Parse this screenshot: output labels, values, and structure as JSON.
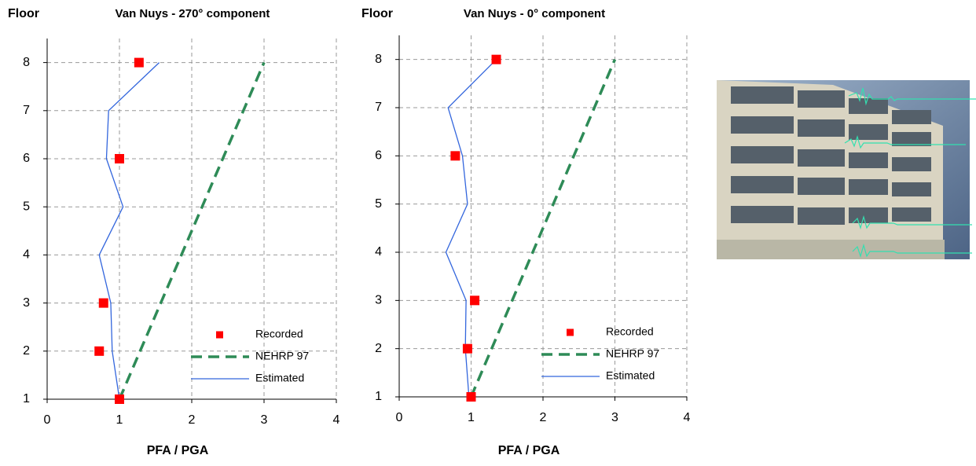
{
  "chart_data": [
    {
      "type": "line",
      "title": "Van Nuys - 270° component",
      "y_label": "Floor",
      "x_label": "PFA / PGA",
      "xlim": [
        0,
        4
      ],
      "xticks": [
        0,
        1,
        2,
        3,
        4
      ],
      "ylim": [
        1,
        8.5
      ],
      "yticks": [
        1,
        2,
        3,
        4,
        5,
        6,
        7,
        8
      ],
      "grid": true,
      "legend": "lower right",
      "series": [
        {
          "name": "Recorded",
          "type": "scatter",
          "color": "#ff0000",
          "x": [
            1.0,
            0.72,
            0.78,
            1.0,
            1.27
          ],
          "values": [
            1,
            2,
            3,
            6,
            8
          ]
        },
        {
          "name": "NEHRP 97",
          "type": "dashed",
          "color": "#2e8b57",
          "x": [
            1,
            3
          ],
          "values": [
            1,
            8
          ]
        },
        {
          "name": "Estimated",
          "type": "line",
          "color": "#3366dd",
          "x": [
            1.0,
            0.9,
            0.88,
            0.72,
            1.05,
            0.82,
            0.85,
            1.55
          ],
          "values": [
            1,
            2,
            3,
            4,
            5,
            6,
            7,
            8
          ]
        }
      ]
    },
    {
      "type": "line",
      "title": "Van Nuys - 0° component",
      "y_label": "Floor",
      "x_label": "PFA / PGA",
      "xlim": [
        0,
        4
      ],
      "xticks": [
        0,
        1,
        2,
        3,
        4
      ],
      "ylim": [
        1,
        8.5
      ],
      "yticks": [
        1,
        2,
        3,
        4,
        5,
        6,
        7,
        8
      ],
      "grid": true,
      "legend": "lower right",
      "series": [
        {
          "name": "Recorded",
          "type": "scatter",
          "color": "#ff0000",
          "x": [
            1.0,
            0.95,
            1.05,
            0.78,
            1.35
          ],
          "values": [
            1,
            2,
            3,
            6,
            8
          ]
        },
        {
          "name": "NEHRP 97",
          "type": "dashed",
          "color": "#2e8b57",
          "x": [
            1,
            3
          ],
          "values": [
            1,
            8
          ]
        },
        {
          "name": "Estimated",
          "type": "line",
          "color": "#3366dd",
          "x": [
            0.97,
            0.92,
            0.93,
            0.65,
            0.95,
            0.88,
            0.68,
            1.35
          ],
          "values": [
            1,
            2,
            3,
            4,
            5,
            6,
            7,
            8
          ]
        }
      ]
    }
  ]
}
